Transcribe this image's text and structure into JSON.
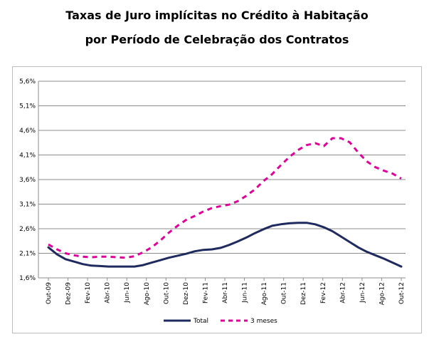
{
  "chart_data": {
    "type": "line",
    "title_line1": "Taxas de Juro implícitas no Crédito à Habitação",
    "title_line2": "por Período de Celebração dos Contratos",
    "xlabel": "",
    "ylabel": "",
    "ylim": [
      1.6,
      5.6
    ],
    "y_ticks": [
      "1,6%",
      "2,1%",
      "2,6%",
      "3,1%",
      "3,6%",
      "4,1%",
      "4,6%",
      "5,1%",
      "5,6%"
    ],
    "y_tick_values": [
      1.6,
      2.1,
      2.6,
      3.1,
      3.6,
      4.1,
      4.6,
      5.1,
      5.6
    ],
    "x_ticks": [
      "Out-09",
      "Dez-09",
      "Fev-10",
      "Abr-10",
      "Jun-10",
      "Ago-10",
      "Out-10",
      "Dez-10",
      "Fev-11",
      "Abr-11",
      "Jun-11",
      "Ago-11",
      "Out-11",
      "Dez-11",
      "Fev-12",
      "Abr-12",
      "Jun-12",
      "Ago-12",
      "Out-12"
    ],
    "grid": true,
    "legend_position": "bottom",
    "series": [
      {
        "name": "Total",
        "color": "#1f2a5e",
        "style": "solid",
        "values": [
          2.22,
          2.08,
          1.98,
          1.93,
          1.88,
          1.85,
          1.84,
          1.83,
          1.83,
          1.83,
          1.83,
          1.86,
          1.91,
          1.96,
          2.01,
          2.05,
          2.09,
          2.14,
          2.17,
          2.18,
          2.21,
          2.27,
          2.34,
          2.42,
          2.51,
          2.59,
          2.66,
          2.69,
          2.71,
          2.72,
          2.72,
          2.69,
          2.63,
          2.55,
          2.44,
          2.33,
          2.22,
          2.13,
          2.06,
          1.99,
          1.91,
          1.83
        ]
      },
      {
        "name": "3 meses",
        "color": "#e0009a",
        "style": "dashed",
        "values": [
          2.28,
          2.18,
          2.1,
          2.06,
          2.03,
          2.02,
          2.03,
          2.03,
          2.02,
          2.01,
          2.04,
          2.12,
          2.22,
          2.36,
          2.52,
          2.66,
          2.78,
          2.86,
          2.95,
          3.02,
          3.06,
          3.09,
          3.16,
          3.27,
          3.4,
          3.57,
          3.71,
          3.89,
          4.06,
          4.2,
          4.3,
          4.34,
          4.28,
          4.44,
          4.44,
          4.36,
          4.15,
          3.97,
          3.85,
          3.78,
          3.72,
          3.62
        ]
      }
    ]
  }
}
